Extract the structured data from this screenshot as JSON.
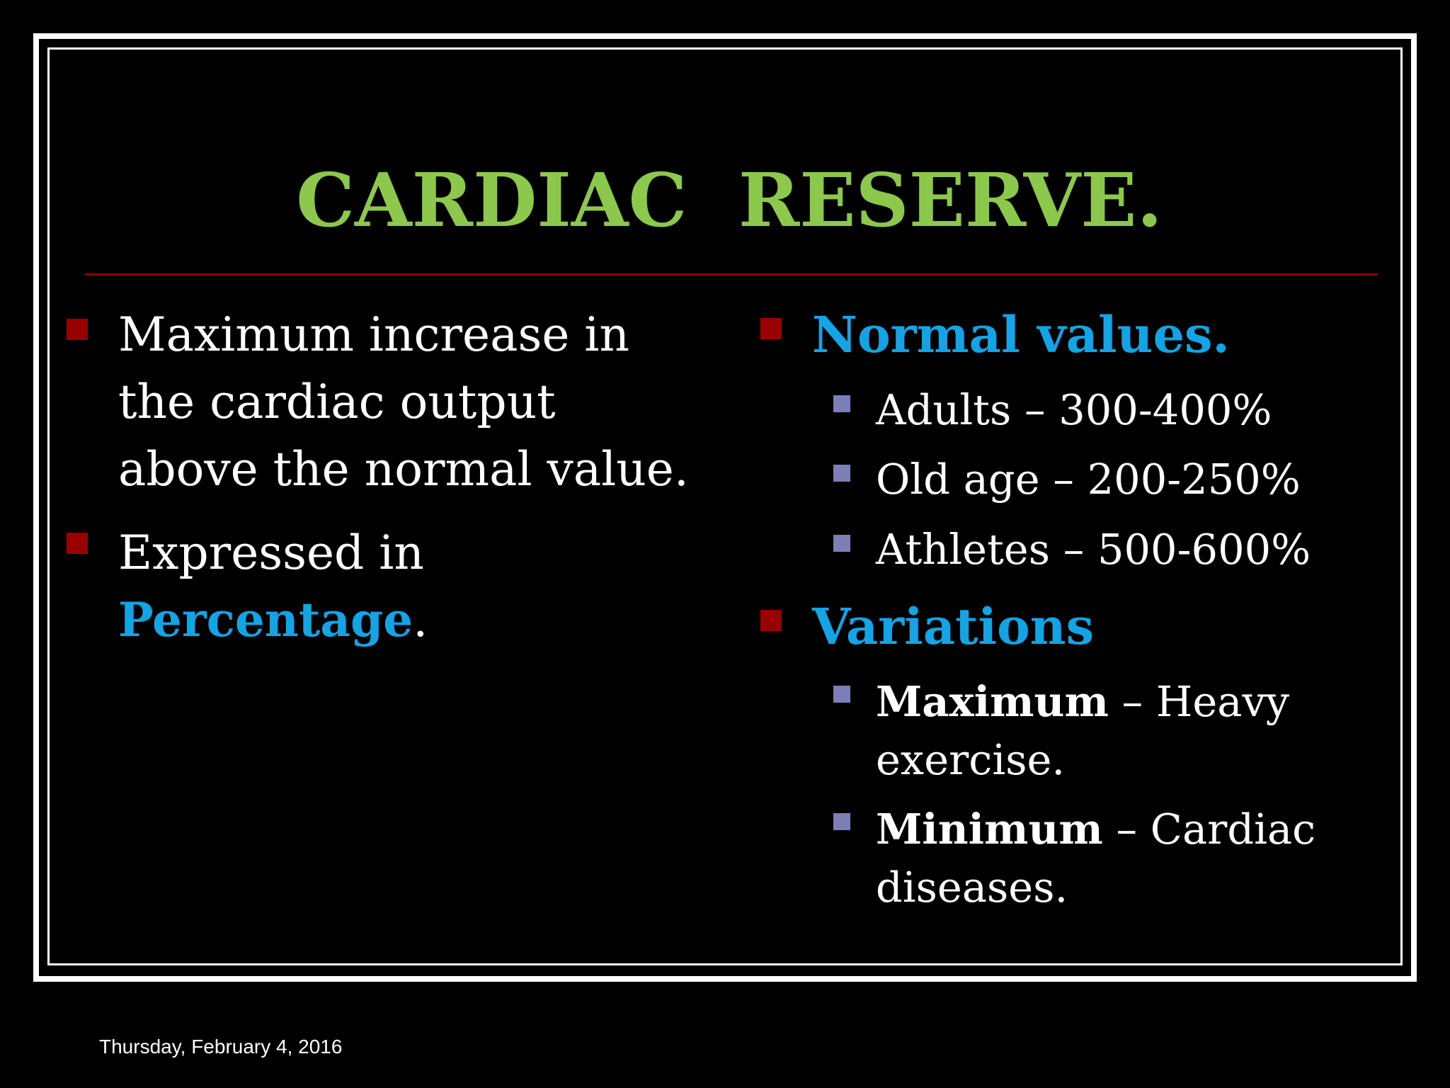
{
  "slide": {
    "title": "CARDIAC  RESERVE.",
    "left": {
      "bullet1_lines": [
        "Maximum increase in",
        "the cardiac output",
        "above the normal value."
      ],
      "bullet2_line1": "Expressed in",
      "bullet2_highlight": "Percentage",
      "bullet2_suffix": "."
    },
    "right": {
      "normal_heading": "Normal values.",
      "normal_items": [
        "Adults – 300-400%",
        "Old age – 200-250%",
        "Athletes – 500-600%"
      ],
      "variations_heading": "Variations",
      "variation_max_bold": "Maximum",
      "variation_max_rest": " – Heavy",
      "variation_max_line2": "exercise.",
      "variation_min_bold": "Minimum",
      "variation_min_rest": " – Cardiac",
      "variation_min_line2": "diseases."
    }
  },
  "footer": {
    "date": "Thursday, February 4, 2016"
  },
  "colors": {
    "title": "#8cc84b",
    "highlight": "#13a4e6",
    "bullet": "#9b0000",
    "sub_bullet": "#7b7fb5",
    "rule": "#8b0000"
  }
}
